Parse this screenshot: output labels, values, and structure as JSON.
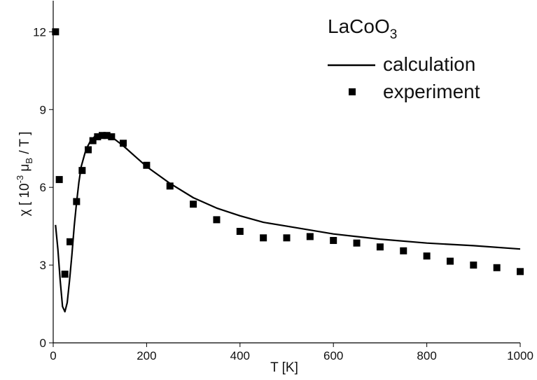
{
  "chart_data": {
    "type": "line",
    "title": "",
    "xlabel": "T [K]",
    "ylabel": "χ [ 10⁻³ μ_B / T ]",
    "xlim": [
      0,
      1000
    ],
    "ylim": [
      0,
      13.2
    ],
    "xticks": [
      0,
      200,
      400,
      600,
      800,
      1000
    ],
    "yticks": [
      0,
      3,
      6,
      9,
      12
    ],
    "grid": false,
    "legend_position": "top-right",
    "legend_title": "LaCoO3",
    "series": [
      {
        "name": "calculation",
        "style": "line",
        "x": [
          5,
          10,
          15,
          20,
          25,
          30,
          35,
          40,
          45,
          50,
          55,
          60,
          70,
          80,
          90,
          100,
          110,
          120,
          130,
          150,
          175,
          200,
          250,
          300,
          350,
          400,
          450,
          500,
          600,
          700,
          800,
          900,
          1000
        ],
        "y": [
          4.55,
          3.6,
          2.4,
          1.4,
          1.2,
          1.55,
          2.4,
          3.4,
          4.5,
          5.4,
          6.2,
          6.8,
          7.45,
          7.8,
          7.98,
          8.05,
          8.05,
          7.98,
          7.88,
          7.6,
          7.2,
          6.8,
          6.15,
          5.6,
          5.2,
          4.9,
          4.65,
          4.5,
          4.2,
          4.0,
          3.85,
          3.75,
          3.62
        ]
      },
      {
        "name": "experiment",
        "style": "markers",
        "x": [
          5,
          13,
          25,
          36,
          50,
          62,
          75,
          85,
          95,
          105,
          115,
          125,
          150,
          200,
          250,
          300,
          350,
          400,
          450,
          500,
          550,
          600,
          650,
          700,
          750,
          800,
          850,
          900,
          950,
          1000
        ],
        "y": [
          12.0,
          6.3,
          2.65,
          3.9,
          5.45,
          6.65,
          7.45,
          7.8,
          7.95,
          8.0,
          8.0,
          7.95,
          7.7,
          6.85,
          6.05,
          5.35,
          4.75,
          4.3,
          4.05,
          4.05,
          4.1,
          3.95,
          3.85,
          3.7,
          3.55,
          3.35,
          3.15,
          3.0,
          2.9,
          2.75
        ]
      }
    ]
  },
  "legend": {
    "title_main": "LaCoO",
    "title_sub": "3",
    "items": [
      "calculation",
      "experiment"
    ]
  },
  "axes": {
    "x_label": "T [K]",
    "y_label_prefix": "χ  [ 10",
    "y_label_sup": "-3",
    "y_label_mu": "  μ",
    "y_label_sub": "B",
    "y_label_suffix": " / T ]"
  }
}
